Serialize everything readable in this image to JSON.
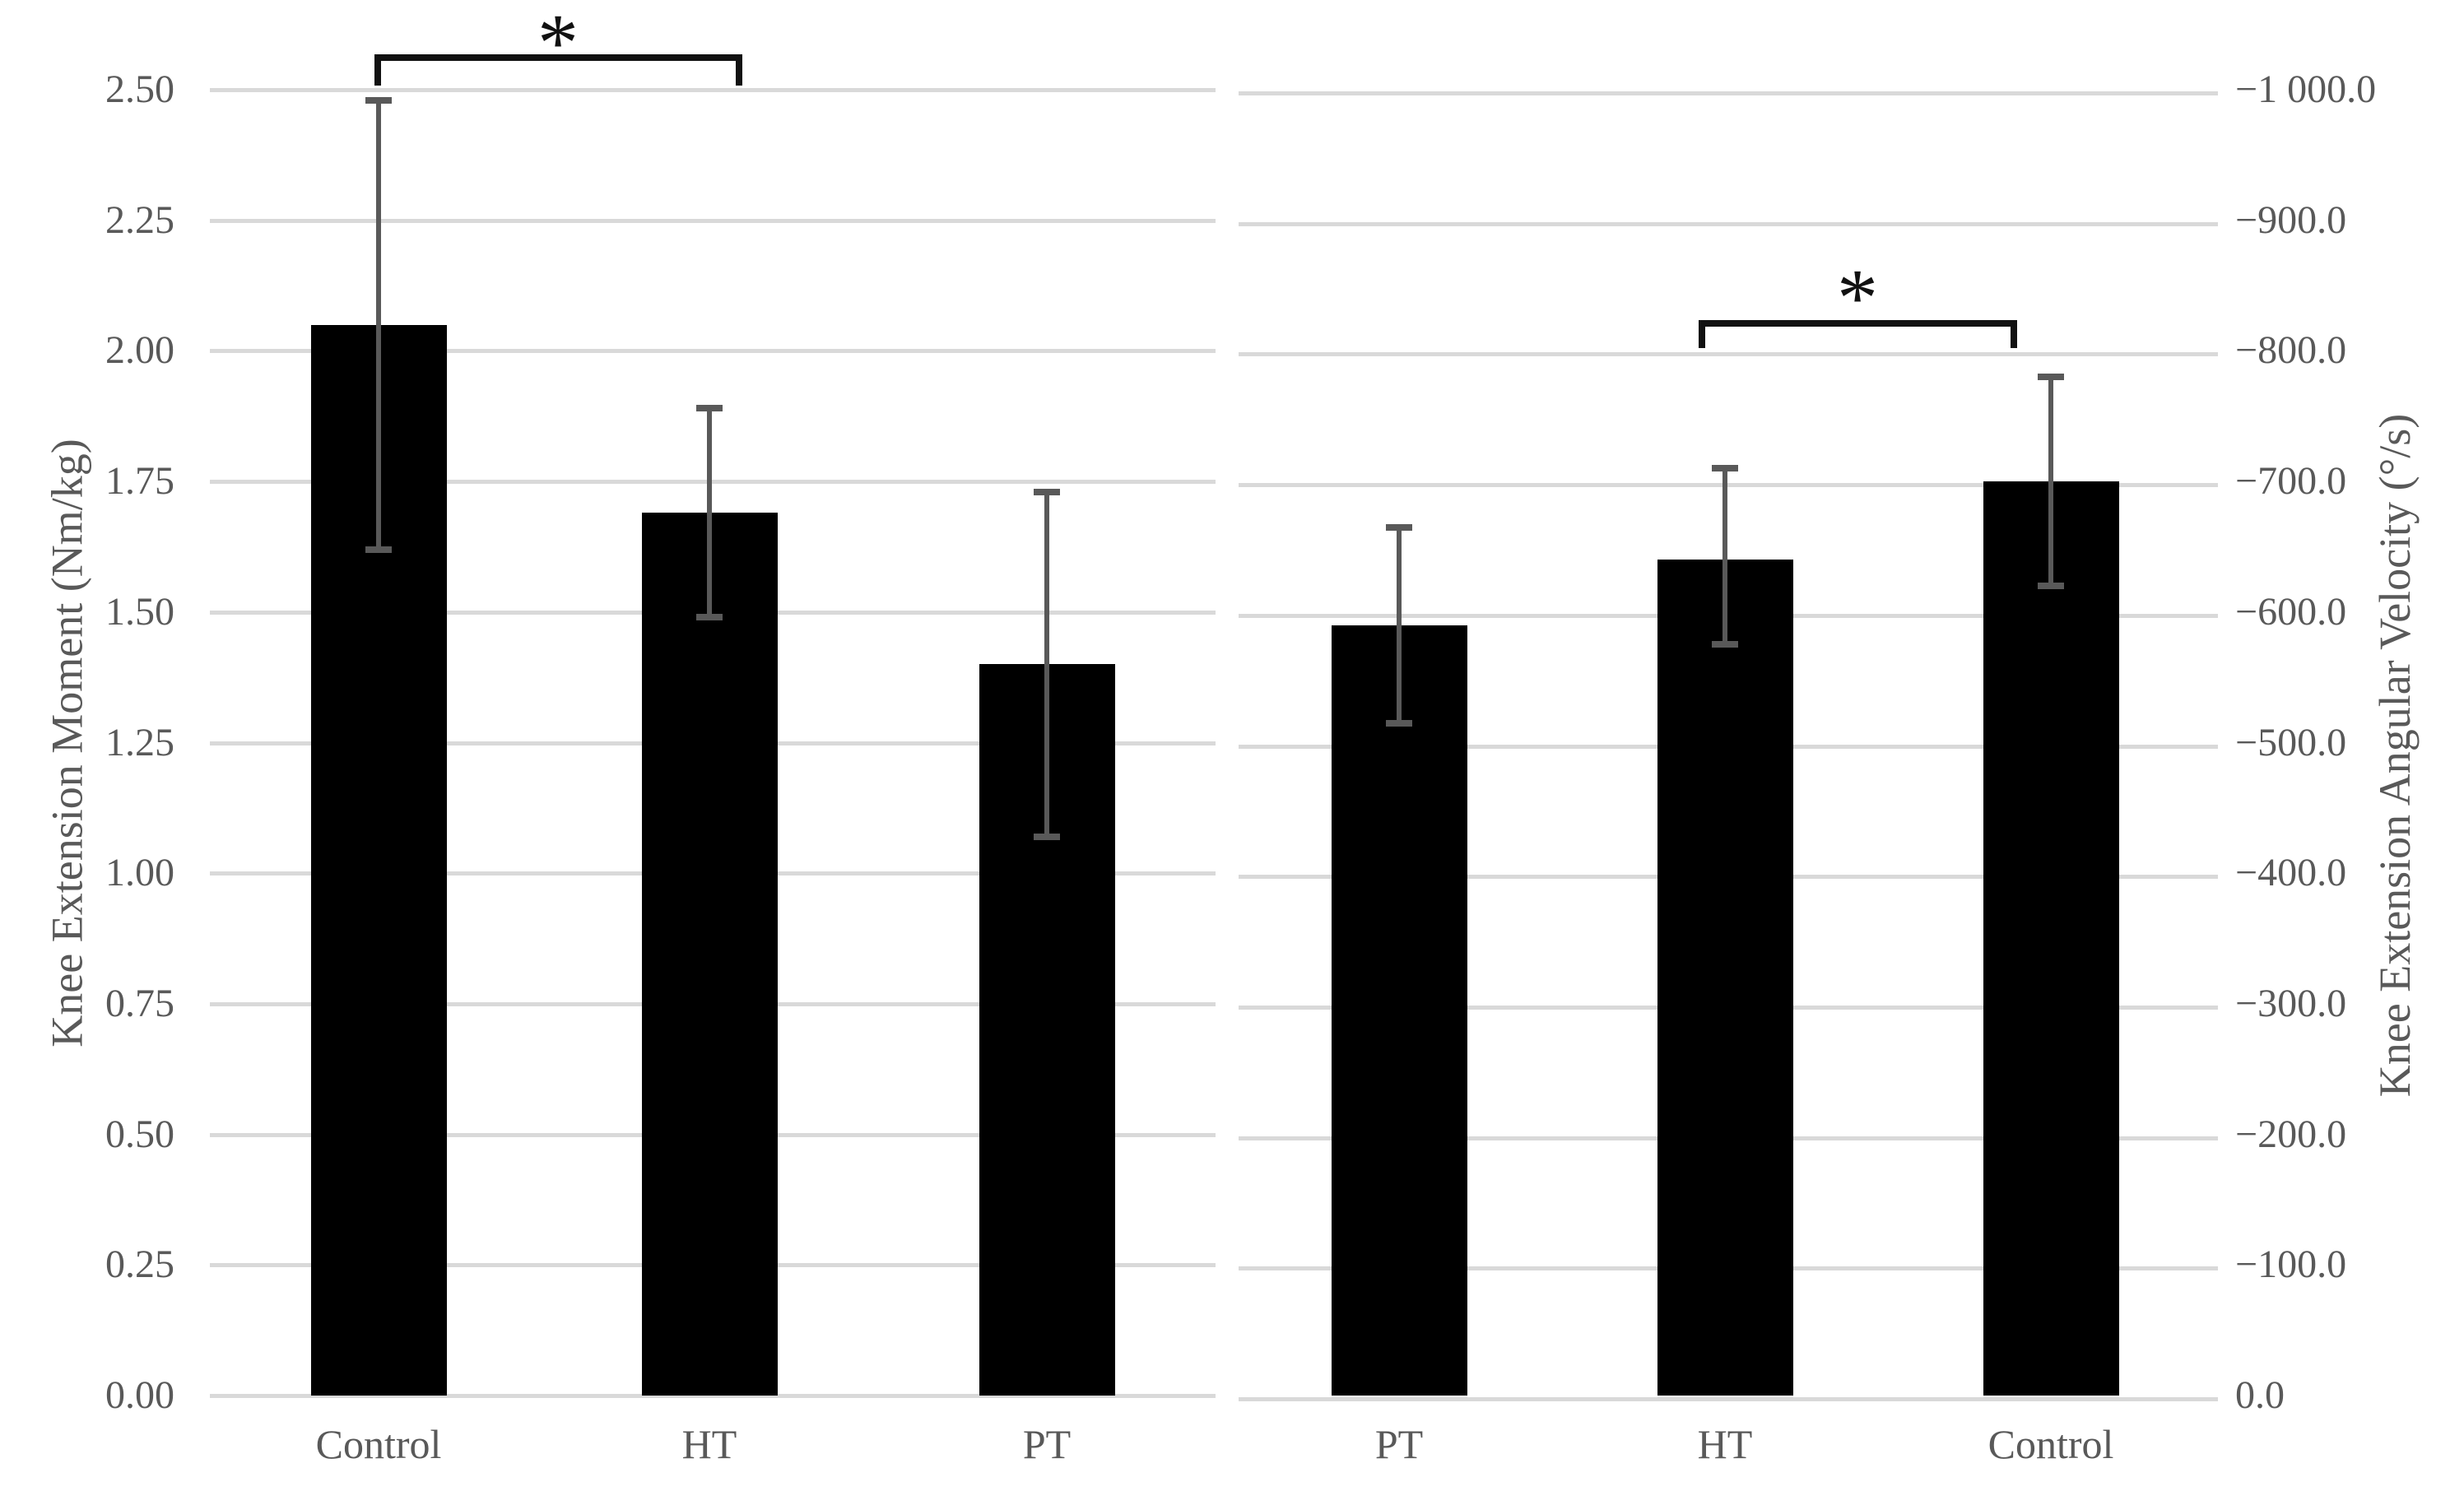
{
  "figure": {
    "background": "#ffffff",
    "bar_color": "#000000",
    "error_bar_color": "#595959",
    "gridline_color": "#d9d9d9",
    "axis_text_color": "#595959",
    "bracket_color": "#111111"
  },
  "chart_data": {
    "type": "bar",
    "dual_axis": true,
    "grid": true,
    "legend": false,
    "left_axis": {
      "label": "Knee Extension Moment (Nm/kg)",
      "min": 0.0,
      "max": 2.5,
      "tick_step": 0.25,
      "tick_labels": [
        "2.50",
        "2.25",
        "2.00",
        "1.75",
        "1.50",
        "1.25",
        "1.00",
        "0.75",
        "0.50",
        "0.25",
        "0.00"
      ]
    },
    "right_axis": {
      "label": "Knee Extension Angular Velocity (°/s)",
      "min": 0.0,
      "max": -1000.0,
      "inverted": true,
      "tick_step": -100.0,
      "tick_labels": [
        "−1 000.0",
        "−900.0",
        "−800.0",
        "−700.0",
        "−600.0",
        "−500.0",
        "−400.0",
        "−300.0",
        "−200.0",
        "−100.0",
        "0.0"
      ]
    },
    "categories": [
      "Control",
      "HT",
      "PT",
      "PT",
      "HT",
      "Control"
    ],
    "series": [
      {
        "name": "Knee Extension Moment",
        "axis": "left",
        "unit": "Nm/kg",
        "categories": [
          "Control",
          "HT",
          "PT"
        ],
        "values": [
          2.05,
          1.69,
          1.4
        ],
        "error_low": [
          1.62,
          1.49,
          1.07
        ],
        "error_high": [
          2.48,
          1.89,
          1.73
        ]
      },
      {
        "name": "Knee Extension Angular Velocity",
        "axis": "right",
        "unit": "°/s",
        "categories": [
          "PT",
          "HT",
          "Control"
        ],
        "values": [
          -590.0,
          -640.0,
          -700.0
        ],
        "error_low": [
          -515.0,
          -575.0,
          -620.0
        ],
        "error_high": [
          -665.0,
          -710.0,
          -780.0
        ]
      }
    ],
    "significance_brackets": [
      {
        "series": "Knee Extension Moment",
        "between": [
          "Control",
          "HT"
        ],
        "label": "*"
      },
      {
        "series": "Knee Extension Angular Velocity",
        "between": [
          "HT",
          "Control"
        ],
        "label": "*"
      }
    ]
  }
}
